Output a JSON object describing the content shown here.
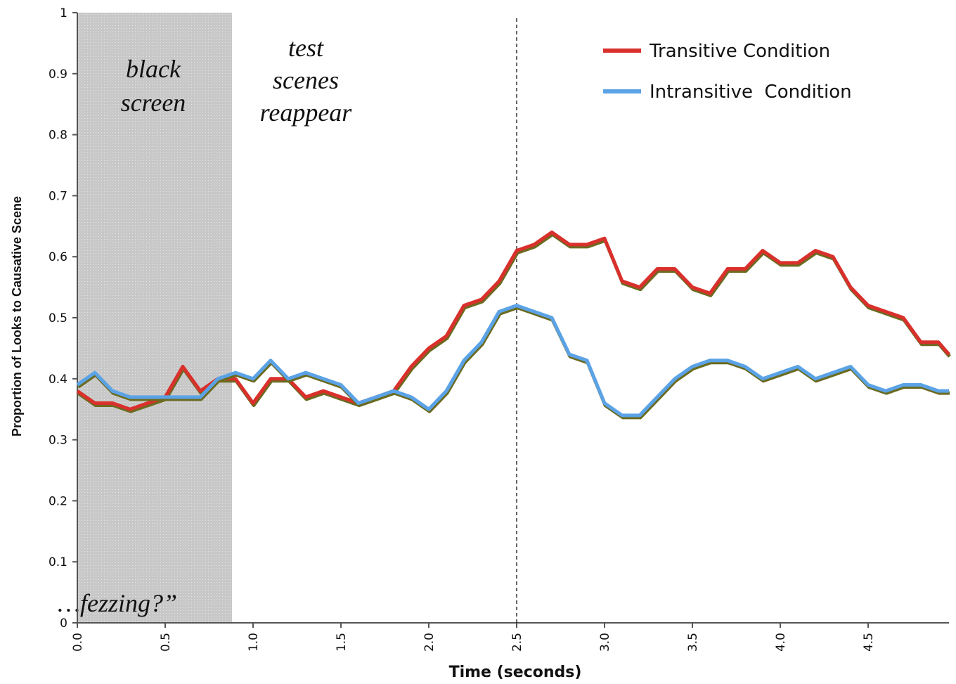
{
  "chart_data": {
    "type": "line",
    "title": null,
    "x_label": "Time (seconds)",
    "y_label": "Proportion of Looks to Causative Scene",
    "x": [
      0,
      0.1,
      0.2,
      0.3,
      0.4,
      0.5,
      0.6,
      0.7,
      0.8,
      0.9,
      1.0,
      1.1,
      1.2,
      1.3,
      1.4,
      1.5,
      1.6,
      1.7,
      1.8,
      1.9,
      2.0,
      2.1,
      2.2,
      2.3,
      2.4,
      2.5,
      2.6,
      2.7,
      2.8,
      2.9,
      3.0,
      3.1,
      3.2,
      3.3,
      3.4,
      3.5,
      3.6,
      3.7,
      3.8,
      3.9,
      4.0,
      4.1,
      4.2,
      4.3,
      4.4,
      4.5,
      4.6,
      4.7,
      4.8,
      4.9,
      4.96
    ],
    "series": [
      {
        "name": "Transitive Condition",
        "color": "#d9302c",
        "values": [
          0.38,
          0.36,
          0.36,
          0.35,
          0.36,
          0.37,
          0.42,
          0.38,
          0.4,
          0.4,
          0.36,
          0.4,
          0.4,
          0.37,
          0.38,
          0.37,
          0.36,
          0.37,
          0.38,
          0.42,
          0.45,
          0.47,
          0.52,
          0.53,
          0.56,
          0.61,
          0.62,
          0.64,
          0.62,
          0.62,
          0.63,
          0.56,
          0.55,
          0.58,
          0.58,
          0.55,
          0.54,
          0.58,
          0.58,
          0.61,
          0.59,
          0.59,
          0.61,
          0.6,
          0.55,
          0.52,
          0.51,
          0.5,
          0.46,
          0.46,
          0.44
        ]
      },
      {
        "name": "Intransitive  Condition",
        "color": "#5ba3e6",
        "values": [
          0.39,
          0.41,
          0.38,
          0.37,
          0.37,
          0.37,
          0.37,
          0.37,
          0.4,
          0.41,
          0.4,
          0.43,
          0.4,
          0.41,
          0.4,
          0.39,
          0.36,
          0.37,
          0.38,
          0.37,
          0.35,
          0.38,
          0.43,
          0.46,
          0.51,
          0.52,
          0.51,
          0.5,
          0.44,
          0.43,
          0.36,
          0.34,
          0.34,
          0.37,
          0.4,
          0.42,
          0.43,
          0.43,
          0.42,
          0.4,
          0.41,
          0.42,
          0.4,
          0.41,
          0.42,
          0.39,
          0.38,
          0.39,
          0.39,
          0.38,
          0.38
        ]
      }
    ],
    "xlim": [
      0,
      4.96
    ],
    "ylim": [
      0,
      1
    ],
    "xticks": [
      {
        "value": 0,
        "label": "0.0"
      },
      0.5,
      {
        "value": 1,
        "label": "1.0"
      },
      1.5,
      {
        "value": 2,
        "label": "2.0"
      },
      2.5,
      {
        "value": 3,
        "label": "3.0"
      },
      3.5,
      {
        "value": 4,
        "label": "4.0"
      },
      4.5
    ],
    "yticks": [
      0,
      0.1,
      0.2,
      0.3,
      0.4,
      0.5,
      0.6,
      0.7,
      0.8,
      0.9,
      1
    ],
    "shaded_region": [
      0,
      0.88
    ],
    "vline": 2.5,
    "legend": "top-right",
    "annotations": {
      "shaded": "black screen",
      "scenes": "test scenes reappear",
      "word": "…fezzing?”"
    }
  }
}
